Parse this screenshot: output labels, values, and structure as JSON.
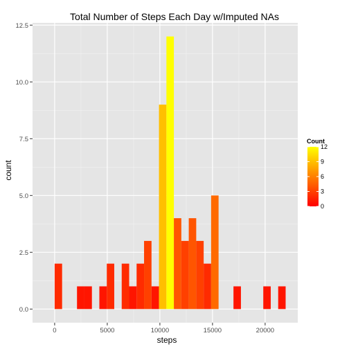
{
  "chart_data": {
    "type": "bar",
    "title": "Total Number of Steps Each Day w/Imputed NAs",
    "xlabel": "steps",
    "ylabel": "count",
    "xlim": [
      -2100,
      23100
    ],
    "ylim": [
      -0.6,
      12.6
    ],
    "x_ticks": [
      0,
      5000,
      10000,
      15000,
      20000
    ],
    "x_tick_labels": [
      "0",
      "5000",
      "10000",
      "15000",
      "20000"
    ],
    "y_ticks": [
      0,
      2.5,
      5,
      7.5,
      10,
      12.5
    ],
    "y_tick_labels": [
      "0.0",
      "2.5",
      "5.0",
      "7.5",
      "10.0",
      "12.5"
    ],
    "grid": true,
    "bin_width": 708,
    "bins": [
      {
        "x": 354,
        "count": 2
      },
      {
        "x": 2478,
        "count": 1
      },
      {
        "x": 3186,
        "count": 1
      },
      {
        "x": 4602,
        "count": 1
      },
      {
        "x": 5310,
        "count": 2
      },
      {
        "x": 6726,
        "count": 2
      },
      {
        "x": 7434,
        "count": 1
      },
      {
        "x": 8142,
        "count": 2
      },
      {
        "x": 8850,
        "count": 3
      },
      {
        "x": 9558,
        "count": 1
      },
      {
        "x": 10266,
        "count": 9
      },
      {
        "x": 10974,
        "count": 12
      },
      {
        "x": 11682,
        "count": 4
      },
      {
        "x": 12390,
        "count": 3
      },
      {
        "x": 13098,
        "count": 4
      },
      {
        "x": 13806,
        "count": 3
      },
      {
        "x": 14514,
        "count": 2
      },
      {
        "x": 15222,
        "count": 5
      },
      {
        "x": 17346,
        "count": 1
      },
      {
        "x": 20178,
        "count": 1
      },
      {
        "x": 21594,
        "count": 1
      }
    ],
    "legend": {
      "title": "Count",
      "position": "right",
      "ticks": [
        0,
        3,
        6,
        9,
        12
      ],
      "tick_labels": [
        "0",
        "3",
        "6",
        "9",
        "12"
      ],
      "color_low": "#ff0000",
      "color_high": "#ffff00"
    },
    "panel_background": "#e5e5e5",
    "grid_color": "#ffffff"
  }
}
